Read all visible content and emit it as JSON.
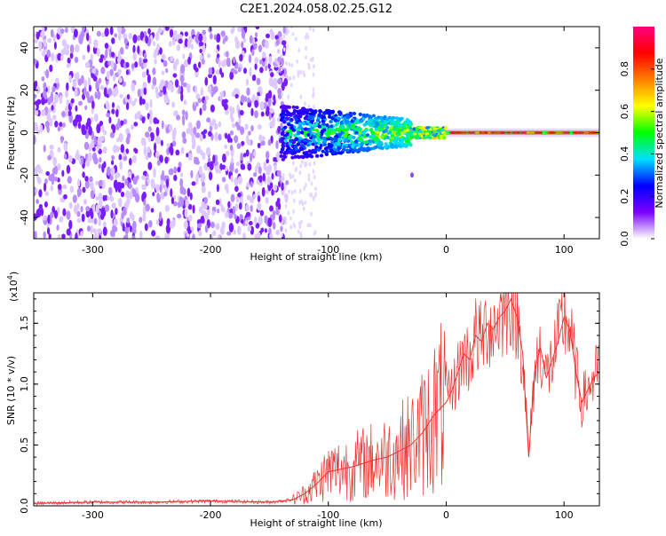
{
  "title": "C2E1.2024.058.02.25.G12",
  "chart_data": [
    {
      "type": "heatmap",
      "title": "C2E1.2024.058.02.25.G12",
      "xlabel": "Height of straight line (km)",
      "ylabel": "Frequency (Hz)",
      "xlim": [
        -350,
        130
      ],
      "ylim": [
        -50,
        50
      ],
      "xticks": [
        -300,
        -200,
        -100,
        0,
        100
      ],
      "xtick_labels": [
        "-300",
        "-200",
        "-100",
        "0",
        "100"
      ],
      "yticks": [
        -40,
        -20,
        0,
        20,
        40
      ],
      "ytick_labels": [
        "-40",
        "-20",
        "0",
        "20",
        "40"
      ],
      "colorbar": {
        "label": "Normalized spectral amplitude",
        "range": [
          0,
          1
        ],
        "ticks": [
          0.0,
          0.2,
          0.4,
          0.6,
          0.8
        ],
        "tick_labels": [
          "0.0",
          "0.2",
          "0.4",
          "0.6",
          "0.8"
        ],
        "colors": [
          "#ffffff",
          "#7a00ff",
          "#0000ff",
          "#00e0ff",
          "#00ff00",
          "#ffff00",
          "#ff8000",
          "#ff0000",
          "#ff0080"
        ]
      },
      "description_regions": [
        {
          "x_range": [
            -350,
            -140
          ],
          "freq_range": [
            -50,
            50
          ],
          "amplitude": 0.12
        },
        {
          "x_range": [
            -140,
            -30
          ],
          "freq_range": [
            -10,
            10
          ],
          "amplitude": 0.35
        },
        {
          "x_range": [
            -30,
            0
          ],
          "freq_range": [
            -3,
            3
          ],
          "amplitude": 0.55
        },
        {
          "x_range": [
            0,
            130
          ],
          "freq_range": [
            -1,
            1
          ],
          "amplitude": 0.85
        }
      ]
    },
    {
      "type": "line",
      "xlabel": "Height of straight line (km)",
      "ylabel": "SNR (10 * v/v)",
      "scale_label": "(x10",
      "scale_exponent": "4",
      "scale_close": ")",
      "xlim": [
        -350,
        130
      ],
      "ylim": [
        0,
        1.75
      ],
      "xticks": [
        -300,
        -200,
        -100,
        0,
        100
      ],
      "xtick_labels": [
        "-300",
        "-200",
        "-100",
        "0",
        "100"
      ],
      "yticks": [
        0.0,
        0.5,
        1.0,
        1.5
      ],
      "ytick_labels": [
        "0.0",
        "0.5",
        "1.0",
        "1.5"
      ],
      "line_color": "#ee3333",
      "series": [
        {
          "name": "SNR",
          "x": [
            -350,
            -300,
            -250,
            -200,
            -150,
            -130,
            -120,
            -110,
            -100,
            -90,
            -80,
            -70,
            -60,
            -50,
            -40,
            -30,
            -20,
            -10,
            0,
            5,
            10,
            15,
            20,
            25,
            30,
            35,
            40,
            45,
            50,
            55,
            60,
            65,
            70,
            75,
            80,
            85,
            90,
            95,
            100,
            105,
            110,
            115,
            120,
            125,
            130
          ],
          "y": [
            0.02,
            0.03,
            0.03,
            0.04,
            0.03,
            0.05,
            0.1,
            0.18,
            0.28,
            0.3,
            0.32,
            0.35,
            0.38,
            0.4,
            0.45,
            0.5,
            0.6,
            0.75,
            0.85,
            0.95,
            1.1,
            1.25,
            1.2,
            1.4,
            1.35,
            1.5,
            1.45,
            1.55,
            1.6,
            1.7,
            1.55,
            1.25,
            0.4,
            1.1,
            1.3,
            1.05,
            1.2,
            1.35,
            1.55,
            1.45,
            1.1,
            0.85,
            0.95,
            1.05,
            1.1
          ]
        }
      ]
    }
  ]
}
